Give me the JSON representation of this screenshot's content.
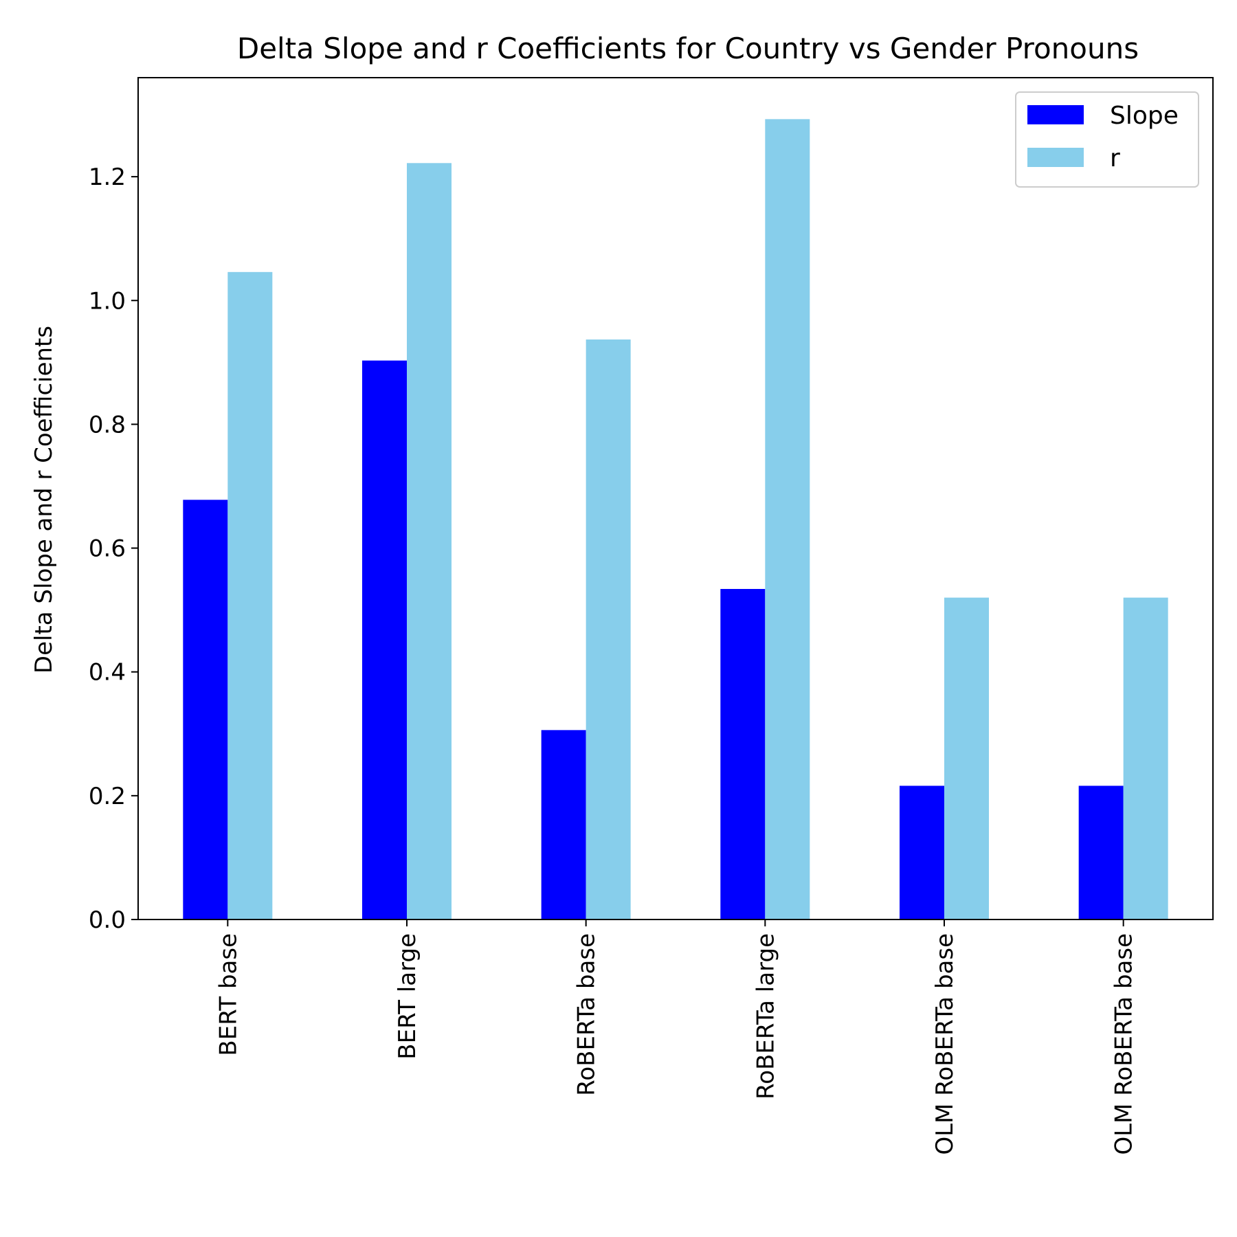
{
  "chart_data": {
    "type": "bar",
    "title": "Delta Slope and r Coefficients for Country vs Gender Pronouns",
    "xlabel": "",
    "ylabel": "Delta Slope and r Coefficients",
    "categories": [
      "BERT base",
      "BERT large",
      "RoBERTa base",
      "RoBERTa large",
      "OLM RoBERTa base",
      "OLM RoBERTa base"
    ],
    "series": [
      {
        "name": "Slope",
        "color": "#0000ff",
        "values": [
          0.678,
          0.903,
          0.306,
          0.534,
          0.216,
          0.216
        ]
      },
      {
        "name": "r",
        "color": "#87ceeb",
        "values": [
          1.046,
          1.222,
          0.937,
          1.293,
          0.52,
          0.52
        ]
      }
    ],
    "ylim": [
      0,
      1.36
    ],
    "yticks": [
      0.0,
      0.2,
      0.4,
      0.6,
      0.8,
      1.0,
      1.2
    ],
    "ytick_labels": [
      "0.0",
      "0.2",
      "0.4",
      "0.6",
      "0.8",
      "1.0",
      "1.2"
    ],
    "grid": false,
    "legend_position": "top-right"
  }
}
